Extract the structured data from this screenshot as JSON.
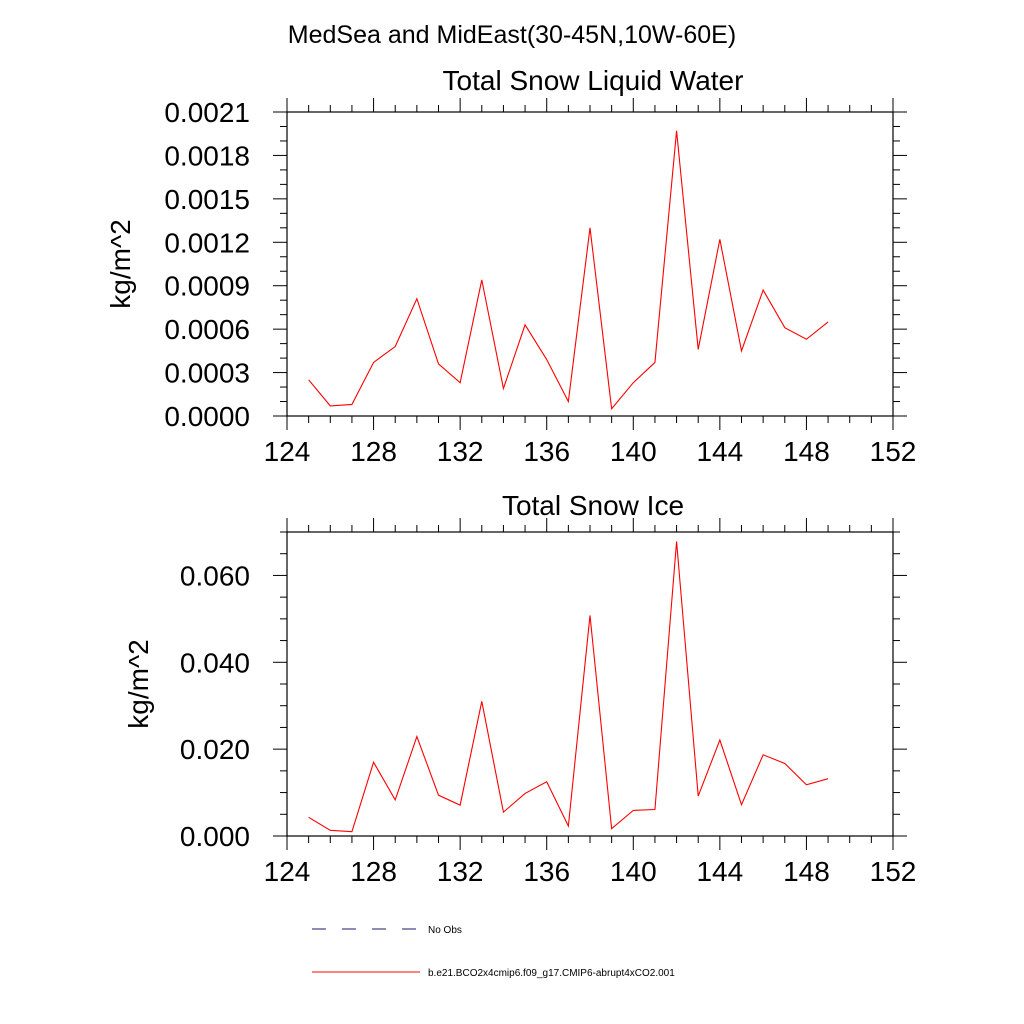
{
  "figure": {
    "suptitle": "MedSea and MidEast(30-45N,10W-60E)"
  },
  "chart_data": [
    {
      "type": "line",
      "title": "Total Snow Liquid Water",
      "xlabel": "",
      "ylabel": "kg/m^2",
      "xlim": [
        124,
        152
      ],
      "ylim": [
        0,
        0.0021
      ],
      "xticks": [
        124,
        128,
        132,
        136,
        140,
        144,
        148,
        152
      ],
      "xtick_labels": [
        "124",
        "128",
        "132",
        "136",
        "140",
        "144",
        "148",
        "152"
      ],
      "yticks": [
        0,
        0.0003,
        0.0006,
        0.0009,
        0.0012,
        0.0015,
        0.0018,
        0.0021
      ],
      "ytick_labels": [
        "0.0000",
        "0.0003",
        "0.0006",
        "0.0009",
        "0.0012",
        "0.0015",
        "0.0018",
        "0.0021"
      ],
      "y_minor_step": 0.0001,
      "x_minor_step": 1,
      "series": [
        {
          "name": "b.e21.BCO2x4cmip6.f09_g17.CMIP6-abrupt4xCO2.001",
          "color": "#ff0000",
          "x": [
            125,
            126,
            127,
            128,
            129,
            130,
            131,
            132,
            133,
            134,
            135,
            136,
            137,
            138,
            139,
            140,
            141,
            142,
            143,
            144,
            145,
            146,
            147,
            148,
            149
          ],
          "values": [
            0.00025,
            7e-05,
            8e-05,
            0.00037,
            0.00048,
            0.00081,
            0.00036,
            0.00023,
            0.00094,
            0.00019,
            0.00063,
            0.00039,
            0.0001,
            0.0013,
            5e-05,
            0.00023,
            0.00037,
            0.00197,
            0.00046,
            0.00122,
            0.00045,
            0.00087,
            0.00061,
            0.00053,
            0.00065
          ]
        }
      ]
    },
    {
      "type": "line",
      "title": "Total Snow Ice",
      "xlabel": "",
      "ylabel": "kg/m^2",
      "xlim": [
        124,
        152
      ],
      "ylim": [
        0,
        0.07
      ],
      "xticks": [
        124,
        128,
        132,
        136,
        140,
        144,
        148,
        152
      ],
      "xtick_labels": [
        "124",
        "128",
        "132",
        "136",
        "140",
        "144",
        "148",
        "152"
      ],
      "yticks": [
        0,
        0.02,
        0.04,
        0.06
      ],
      "ytick_labels": [
        "0.000",
        "0.020",
        "0.040",
        "0.060"
      ],
      "y_minor_step": 0.005,
      "x_minor_step": 1,
      "series": [
        {
          "name": "b.e21.BCO2x4cmip6.f09_g17.CMIP6-abrupt4xCO2.001",
          "color": "#ff0000",
          "x": [
            125,
            126,
            127,
            128,
            129,
            130,
            131,
            132,
            133,
            134,
            135,
            136,
            137,
            138,
            139,
            140,
            141,
            142,
            143,
            144,
            145,
            146,
            147,
            148,
            149
          ],
          "values": [
            0.0043,
            0.0013,
            0.001,
            0.017,
            0.0083,
            0.0229,
            0.0094,
            0.0071,
            0.031,
            0.0055,
            0.0098,
            0.0125,
            0.0023,
            0.0508,
            0.0017,
            0.0059,
            0.0061,
            0.0678,
            0.0092,
            0.0221,
            0.0072,
            0.0187,
            0.0167,
            0.0118,
            0.0132
          ]
        }
      ]
    }
  ],
  "legend": {
    "placement": "bottom",
    "entries": [
      {
        "label": "No Obs",
        "color": "#1a1a6e",
        "style": "dashed"
      },
      {
        "label": "b.e21.BCO2x4cmip6.f09_g17.CMIP6-abrupt4xCO2.001",
        "color": "#ff0000",
        "style": "solid"
      }
    ]
  }
}
